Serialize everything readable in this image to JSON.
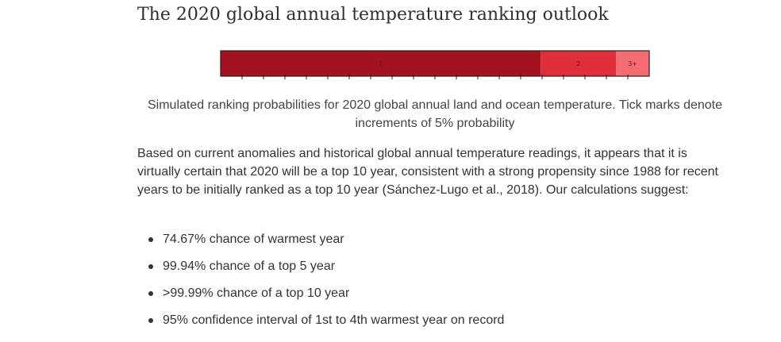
{
  "heading": "The 2020 global annual temperature ranking outlook",
  "chart_data": {
    "type": "bar",
    "orientation": "horizontal-stacked",
    "categories": [
      "1",
      "2",
      "3+"
    ],
    "values": [
      74.67,
      17.6,
      7.73
    ],
    "unit": "% probability",
    "tick_interval": 5,
    "colors": [
      "#a3131f",
      "#de2f38",
      "#f46b72"
    ],
    "label_color": "#5a1a1a"
  },
  "caption": "Simulated ranking probabilities for 2020 global annual land and ocean temperature. Tick marks denote increments of 5% probability",
  "body": "Based on current anomalies and historical global annual temperature readings, it appears that it is virtually certain that 2020 will be a top 10 year, consistent with a strong propensity since 1988 for recent years to be initially ranked as a top 10 year (Sánchez-Lugo et al., 2018). Our calculations suggest:",
  "bullets": [
    "74.67% chance of warmest year",
    "99.94% chance of a top 5 year",
    ">99.99% chance of a top 10 year",
    "95% confidence interval of 1st to 4th warmest year on record"
  ]
}
